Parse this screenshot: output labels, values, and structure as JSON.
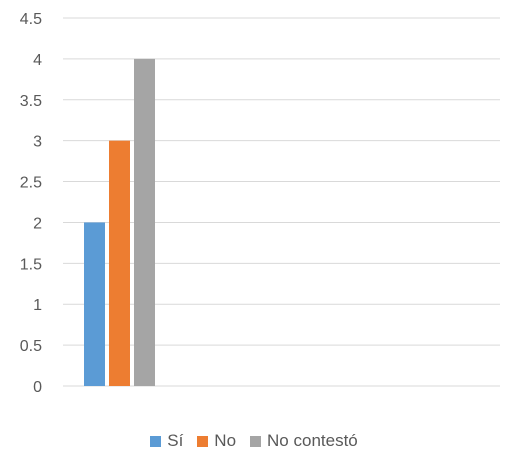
{
  "chart_data": {
    "type": "bar",
    "categories": [
      ""
    ],
    "series": [
      {
        "name": "Sí",
        "values": [
          2
        ],
        "color": "#5b9bd5"
      },
      {
        "name": "No",
        "values": [
          3
        ],
        "color": "#ed7d31"
      },
      {
        "name": "No contestó",
        "values": [
          4
        ],
        "color": "#a5a5a5"
      }
    ],
    "ylim": [
      0,
      4.5
    ],
    "yticks": [
      "0",
      "0.5",
      "1",
      "1.5",
      "2",
      "2.5",
      "3",
      "3.5",
      "4",
      "4.5"
    ],
    "grid": true,
    "legend_position": "bottom",
    "title": "",
    "xlabel": "",
    "ylabel": ""
  }
}
